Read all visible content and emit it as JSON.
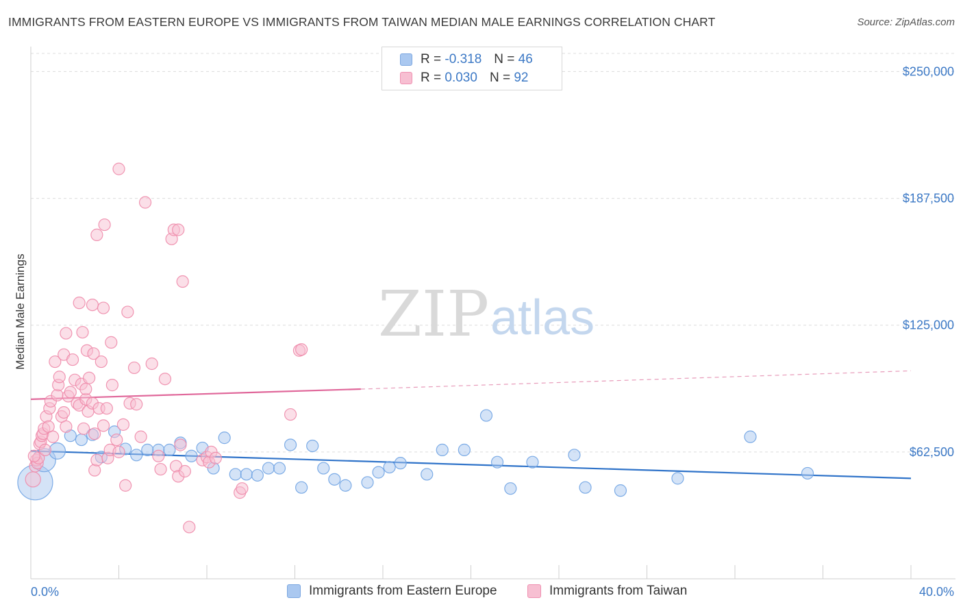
{
  "header": {
    "title": "IMMIGRANTS FROM EASTERN EUROPE VS IMMIGRANTS FROM TAIWAN MEDIAN MALE EARNINGS CORRELATION CHART",
    "source": "Source: ZipAtlas.com"
  },
  "watermark": {
    "zip": "ZIP",
    "atlas": "atlas"
  },
  "legend": {
    "rows": [
      {
        "r_label": "R =",
        "r_value": "-0.318",
        "n_label": "N =",
        "n_value": "46",
        "color": "#aac8f0",
        "border": "#7aa6e0"
      },
      {
        "r_label": "R =",
        "r_value": "0.030",
        "n_label": "N =",
        "n_value": "92",
        "color": "#f7bfd2",
        "border": "#ef8fb0"
      }
    ]
  },
  "bottom_legend": {
    "eastern_europe": "Immigrants from Eastern Europe",
    "taiwan": "Immigrants from Taiwan"
  },
  "chart_data": {
    "type": "scatter",
    "title": "IMMIGRANTS FROM EASTERN EUROPE VS IMMIGRANTS FROM TAIWAN MEDIAN MALE EARNINGS CORRELATION CHART",
    "xlabel": "",
    "ylabel": "Median Male Earnings",
    "xlim": [
      0,
      40
    ],
    "ylim": [
      0,
      265000
    ],
    "x_tick_labels": [
      "0.0%",
      "40.0%"
    ],
    "y_ticks": [
      62500,
      125000,
      187500,
      250000
    ],
    "y_tick_labels": [
      "$62,500",
      "$125,000",
      "$187,500",
      "$250,000"
    ],
    "grid": true,
    "legend_position": "top-center",
    "series": [
      {
        "name": "Immigrants from Eastern Europe",
        "color": "#6fa3e3",
        "fill": "#aac8f0",
        "r": -0.318,
        "n": 46,
        "trend": {
          "x": [
            0,
            40
          ],
          "y": [
            63000,
            49500
          ]
        },
        "points": [
          {
            "x": 0.2,
            "y": 47500,
            "s": 3
          },
          {
            "x": 0.6,
            "y": 58500,
            "s": 2
          },
          {
            "x": 1.2,
            "y": 63000,
            "s": 1.4
          },
          {
            "x": 1.8,
            "y": 70500,
            "s": 1
          },
          {
            "x": 2.3,
            "y": 68500,
            "s": 1
          },
          {
            "x": 2.8,
            "y": 71000,
            "s": 1
          },
          {
            "x": 3.2,
            "y": 60000,
            "s": 1
          },
          {
            "x": 3.8,
            "y": 72500,
            "s": 1
          },
          {
            "x": 4.3,
            "y": 64000,
            "s": 1
          },
          {
            "x": 4.8,
            "y": 61000,
            "s": 1
          },
          {
            "x": 5.3,
            "y": 63500,
            "s": 1
          },
          {
            "x": 5.8,
            "y": 63500,
            "s": 1
          },
          {
            "x": 6.3,
            "y": 63500,
            "s": 1
          },
          {
            "x": 6.8,
            "y": 67000,
            "s": 1
          },
          {
            "x": 7.3,
            "y": 60500,
            "s": 1
          },
          {
            "x": 7.8,
            "y": 64500,
            "s": 1
          },
          {
            "x": 8.3,
            "y": 54500,
            "s": 1
          },
          {
            "x": 8.8,
            "y": 69500,
            "s": 1
          },
          {
            "x": 9.3,
            "y": 51500,
            "s": 1
          },
          {
            "x": 9.8,
            "y": 51500,
            "s": 1
          },
          {
            "x": 10.3,
            "y": 51000,
            "s": 1
          },
          {
            "x": 10.8,
            "y": 54500,
            "s": 1
          },
          {
            "x": 11.3,
            "y": 54500,
            "s": 1
          },
          {
            "x": 11.8,
            "y": 66000,
            "s": 1
          },
          {
            "x": 12.3,
            "y": 45000,
            "s": 1
          },
          {
            "x": 12.8,
            "y": 65500,
            "s": 1
          },
          {
            "x": 13.3,
            "y": 54500,
            "s": 1
          },
          {
            "x": 13.8,
            "y": 49000,
            "s": 1
          },
          {
            "x": 14.3,
            "y": 46000,
            "s": 1
          },
          {
            "x": 15.3,
            "y": 47500,
            "s": 1
          },
          {
            "x": 15.8,
            "y": 52500,
            "s": 1
          },
          {
            "x": 16.3,
            "y": 55000,
            "s": 1
          },
          {
            "x": 16.8,
            "y": 57000,
            "s": 1
          },
          {
            "x": 18.0,
            "y": 51500,
            "s": 1
          },
          {
            "x": 18.7,
            "y": 63500,
            "s": 1
          },
          {
            "x": 19.7,
            "y": 63500,
            "s": 1
          },
          {
            "x": 20.7,
            "y": 80500,
            "s": 1
          },
          {
            "x": 21.2,
            "y": 57500,
            "s": 1
          },
          {
            "x": 21.8,
            "y": 44500,
            "s": 1
          },
          {
            "x": 22.8,
            "y": 57500,
            "s": 1
          },
          {
            "x": 24.7,
            "y": 61000,
            "s": 1
          },
          {
            "x": 25.2,
            "y": 45000,
            "s": 1
          },
          {
            "x": 26.8,
            "y": 43500,
            "s": 1
          },
          {
            "x": 29.4,
            "y": 49500,
            "s": 1
          },
          {
            "x": 32.7,
            "y": 70000,
            "s": 1
          },
          {
            "x": 35.3,
            "y": 52000,
            "s": 1
          }
        ]
      },
      {
        "name": "Immigrants from Taiwan",
        "color": "#ee8aaa",
        "fill": "#f7bfd2",
        "r": 0.03,
        "n": 92,
        "trend": {
          "x": [
            0,
            15
          ],
          "y": [
            88500,
            93500
          ]
        },
        "trend_extension": {
          "x": [
            15,
            40
          ],
          "y": [
            93500,
            102500
          ]
        },
        "points": [
          {
            "x": 0.1,
            "y": 49000,
            "s": 1.3
          },
          {
            "x": 0.2,
            "y": 55500,
            "s": 1
          },
          {
            "x": 0.25,
            "y": 58500,
            "s": 1
          },
          {
            "x": 0.3,
            "y": 57000,
            "s": 1
          },
          {
            "x": 0.35,
            "y": 59500,
            "s": 1
          },
          {
            "x": 0.4,
            "y": 66500,
            "s": 1
          },
          {
            "x": 0.45,
            "y": 67500,
            "s": 1
          },
          {
            "x": 0.5,
            "y": 70500,
            "s": 1
          },
          {
            "x": 0.55,
            "y": 71500,
            "s": 1
          },
          {
            "x": 0.6,
            "y": 74000,
            "s": 1
          },
          {
            "x": 0.7,
            "y": 80000,
            "s": 1
          },
          {
            "x": 0.8,
            "y": 75000,
            "s": 1
          },
          {
            "x": 0.85,
            "y": 84000,
            "s": 1
          },
          {
            "x": 0.9,
            "y": 87500,
            "s": 1
          },
          {
            "x": 1.0,
            "y": 70000,
            "s": 1
          },
          {
            "x": 1.1,
            "y": 107000,
            "s": 1
          },
          {
            "x": 1.2,
            "y": 90500,
            "s": 1
          },
          {
            "x": 1.25,
            "y": 95500,
            "s": 1
          },
          {
            "x": 1.3,
            "y": 99500,
            "s": 1
          },
          {
            "x": 1.4,
            "y": 80000,
            "s": 1
          },
          {
            "x": 1.5,
            "y": 82000,
            "s": 1
          },
          {
            "x": 1.6,
            "y": 75000,
            "s": 1
          },
          {
            "x": 1.5,
            "y": 110500,
            "s": 1
          },
          {
            "x": 1.6,
            "y": 121000,
            "s": 1
          },
          {
            "x": 1.7,
            "y": 90000,
            "s": 1
          },
          {
            "x": 1.8,
            "y": 92000,
            "s": 1
          },
          {
            "x": 1.9,
            "y": 108000,
            "s": 1
          },
          {
            "x": 2.0,
            "y": 98000,
            "s": 1
          },
          {
            "x": 2.1,
            "y": 86500,
            "s": 1
          },
          {
            "x": 2.2,
            "y": 85500,
            "s": 1
          },
          {
            "x": 2.2,
            "y": 136000,
            "s": 1
          },
          {
            "x": 2.3,
            "y": 96000,
            "s": 1
          },
          {
            "x": 2.35,
            "y": 121500,
            "s": 1
          },
          {
            "x": 2.4,
            "y": 74000,
            "s": 1
          },
          {
            "x": 2.5,
            "y": 88500,
            "s": 1
          },
          {
            "x": 2.5,
            "y": 93500,
            "s": 1
          },
          {
            "x": 2.55,
            "y": 112500,
            "s": 1
          },
          {
            "x": 2.6,
            "y": 82500,
            "s": 1
          },
          {
            "x": 2.65,
            "y": 99000,
            "s": 1
          },
          {
            "x": 2.8,
            "y": 86500,
            "s": 1
          },
          {
            "x": 2.8,
            "y": 135000,
            "s": 1
          },
          {
            "x": 2.85,
            "y": 111000,
            "s": 1
          },
          {
            "x": 2.9,
            "y": 71500,
            "s": 1
          },
          {
            "x": 2.9,
            "y": 53500,
            "s": 1
          },
          {
            "x": 3.0,
            "y": 58500,
            "s": 1
          },
          {
            "x": 3.0,
            "y": 169500,
            "s": 1
          },
          {
            "x": 3.1,
            "y": 84000,
            "s": 1
          },
          {
            "x": 3.2,
            "y": 107000,
            "s": 1
          },
          {
            "x": 3.3,
            "y": 133500,
            "s": 1
          },
          {
            "x": 3.3,
            "y": 75500,
            "s": 1
          },
          {
            "x": 3.35,
            "y": 174500,
            "s": 1
          },
          {
            "x": 3.45,
            "y": 84000,
            "s": 1
          },
          {
            "x": 3.5,
            "y": 59500,
            "s": 1
          },
          {
            "x": 3.6,
            "y": 63500,
            "s": 1
          },
          {
            "x": 3.65,
            "y": 116500,
            "s": 1
          },
          {
            "x": 3.7,
            "y": 95500,
            "s": 1
          },
          {
            "x": 3.9,
            "y": 68500,
            "s": 1
          },
          {
            "x": 4.0,
            "y": 62500,
            "s": 1
          },
          {
            "x": 4.0,
            "y": 202000,
            "s": 1
          },
          {
            "x": 4.2,
            "y": 76000,
            "s": 1
          },
          {
            "x": 4.3,
            "y": 46000,
            "s": 1
          },
          {
            "x": 4.4,
            "y": 131500,
            "s": 1
          },
          {
            "x": 4.5,
            "y": 86500,
            "s": 1
          },
          {
            "x": 4.7,
            "y": 104000,
            "s": 1
          },
          {
            "x": 4.8,
            "y": 86000,
            "s": 1
          },
          {
            "x": 5.0,
            "y": 70000,
            "s": 1
          },
          {
            "x": 5.2,
            "y": 185500,
            "s": 1
          },
          {
            "x": 5.5,
            "y": 106000,
            "s": 1
          },
          {
            "x": 5.8,
            "y": 60500,
            "s": 1
          },
          {
            "x": 5.9,
            "y": 54000,
            "s": 1
          },
          {
            "x": 6.1,
            "y": 98500,
            "s": 1
          },
          {
            "x": 6.4,
            "y": 167500,
            "s": 1
          },
          {
            "x": 6.5,
            "y": 172000,
            "s": 1
          },
          {
            "x": 6.6,
            "y": 55500,
            "s": 1
          },
          {
            "x": 6.7,
            "y": 172000,
            "s": 1
          },
          {
            "x": 6.7,
            "y": 50500,
            "s": 1
          },
          {
            "x": 6.8,
            "y": 66000,
            "s": 1
          },
          {
            "x": 6.9,
            "y": 146500,
            "s": 1
          },
          {
            "x": 7.0,
            "y": 53000,
            "s": 1
          },
          {
            "x": 7.2,
            "y": 25500,
            "s": 1
          },
          {
            "x": 7.8,
            "y": 58500,
            "s": 1
          },
          {
            "x": 8.0,
            "y": 60000,
            "s": 1
          },
          {
            "x": 8.1,
            "y": 57500,
            "s": 1
          },
          {
            "x": 8.2,
            "y": 62500,
            "s": 1
          },
          {
            "x": 8.4,
            "y": 59500,
            "s": 1
          },
          {
            "x": 9.5,
            "y": 42500,
            "s": 1
          },
          {
            "x": 9.6,
            "y": 44500,
            "s": 1
          },
          {
            "x": 11.8,
            "y": 81000,
            "s": 1
          },
          {
            "x": 12.2,
            "y": 112500,
            "s": 1
          },
          {
            "x": 12.3,
            "y": 113000,
            "s": 1
          },
          {
            "x": 0.15,
            "y": 60500,
            "s": 1
          },
          {
            "x": 0.65,
            "y": 63500,
            "s": 1
          }
        ]
      }
    ]
  }
}
